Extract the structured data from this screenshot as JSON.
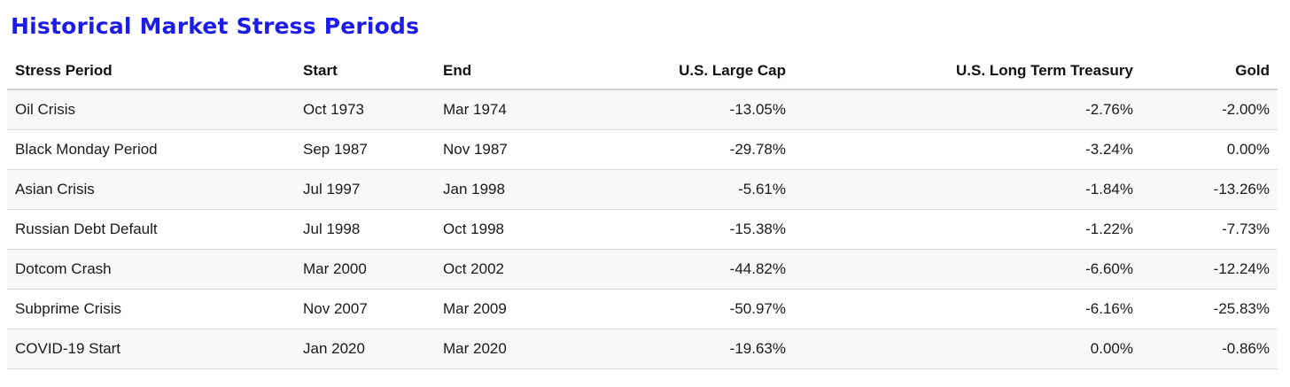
{
  "title": "Historical Market Stress Periods",
  "table": {
    "headers": {
      "period": "Stress Period",
      "start": "Start",
      "end": "End",
      "large_cap": "U.S. Large Cap",
      "treasury": "U.S. Long Term Treasury",
      "gold": "Gold"
    },
    "rows": [
      {
        "period": "Oil Crisis",
        "start": "Oct 1973",
        "end": "Mar 1974",
        "large_cap": "-13.05%",
        "treasury": "-2.76%",
        "gold": "-2.00%"
      },
      {
        "period": "Black Monday Period",
        "start": "Sep 1987",
        "end": "Nov 1987",
        "large_cap": "-29.78%",
        "treasury": "-3.24%",
        "gold": "0.00%"
      },
      {
        "period": "Asian Crisis",
        "start": "Jul 1997",
        "end": "Jan 1998",
        "large_cap": "-5.61%",
        "treasury": "-1.84%",
        "gold": "-13.26%"
      },
      {
        "period": "Russian Debt Default",
        "start": "Jul 1998",
        "end": "Oct 1998",
        "large_cap": "-15.38%",
        "treasury": "-1.22%",
        "gold": "-7.73%"
      },
      {
        "period": "Dotcom Crash",
        "start": "Mar 2000",
        "end": "Oct 2002",
        "large_cap": "-44.82%",
        "treasury": "-6.60%",
        "gold": "-12.24%"
      },
      {
        "period": "Subprime Crisis",
        "start": "Nov 2007",
        "end": "Mar 2009",
        "large_cap": "-50.97%",
        "treasury": "-6.16%",
        "gold": "-25.83%"
      },
      {
        "period": "COVID-19 Start",
        "start": "Jan 2020",
        "end": "Mar 2020",
        "large_cap": "-19.63%",
        "treasury": "0.00%",
        "gold": "-0.86%"
      }
    ]
  },
  "colors": {
    "title": "#1c1ce6",
    "row_stripe": "#f8f8f8",
    "header_rule": "#cfcfcf",
    "row_rule": "#dcdcdc"
  }
}
